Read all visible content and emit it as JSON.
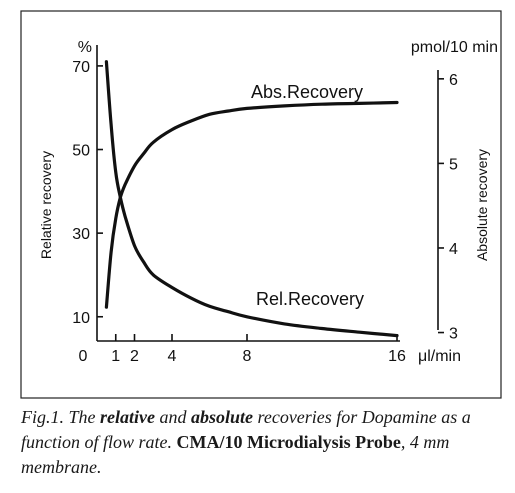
{
  "chart_data": {
    "type": "line",
    "x_unit": "μl/min",
    "x_ticks": [
      0,
      1,
      2,
      4,
      8,
      16
    ],
    "xlim": [
      0,
      16
    ],
    "left_axis": {
      "unit": "%",
      "label": "Relative recovery",
      "ticks": [
        10,
        30,
        50,
        70
      ],
      "ylim": [
        4.2,
        75
      ]
    },
    "right_axis": {
      "unit": "pmol/10 min",
      "label": "Absolute recovery",
      "ticks": [
        3,
        4,
        5,
        6
      ],
      "ylim": [
        2.9,
        6.4
      ]
    },
    "series": [
      {
        "name": "Rel.Recovery",
        "axis": "left",
        "x": [
          0.5,
          0.75,
          1,
          1.25,
          1.5,
          2,
          2.5,
          3,
          4,
          5,
          6,
          7,
          8,
          10,
          12,
          14,
          16
        ],
        "values": [
          71,
          56,
          44.5,
          38.5,
          34,
          27,
          23,
          20,
          17,
          14.5,
          12.5,
          11.2,
          10,
          8.3,
          7.2,
          6.3,
          5.5
        ]
      },
      {
        "name": "Abs.Recovery",
        "axis": "right",
        "x": [
          0.5,
          0.75,
          1,
          1.25,
          1.5,
          2,
          2.5,
          3,
          4,
          5,
          6,
          7,
          8,
          10,
          12,
          14,
          16
        ],
        "values": [
          3.3,
          3.95,
          4.35,
          4.6,
          4.75,
          4.97,
          5.12,
          5.25,
          5.4,
          5.5,
          5.58,
          5.62,
          5.65,
          5.68,
          5.7,
          5.71,
          5.72
        ]
      }
    ]
  },
  "caption": {
    "prefix": "Fig.1. The ",
    "bold1": "relative",
    "mid1": " and ",
    "bold2": "absolute",
    "mid2": " recoveries for Dopamine as a function of flow rate. ",
    "bold3": "CMA/10 Microdialysis Probe",
    "mid3": ", 4 mm membrane."
  }
}
